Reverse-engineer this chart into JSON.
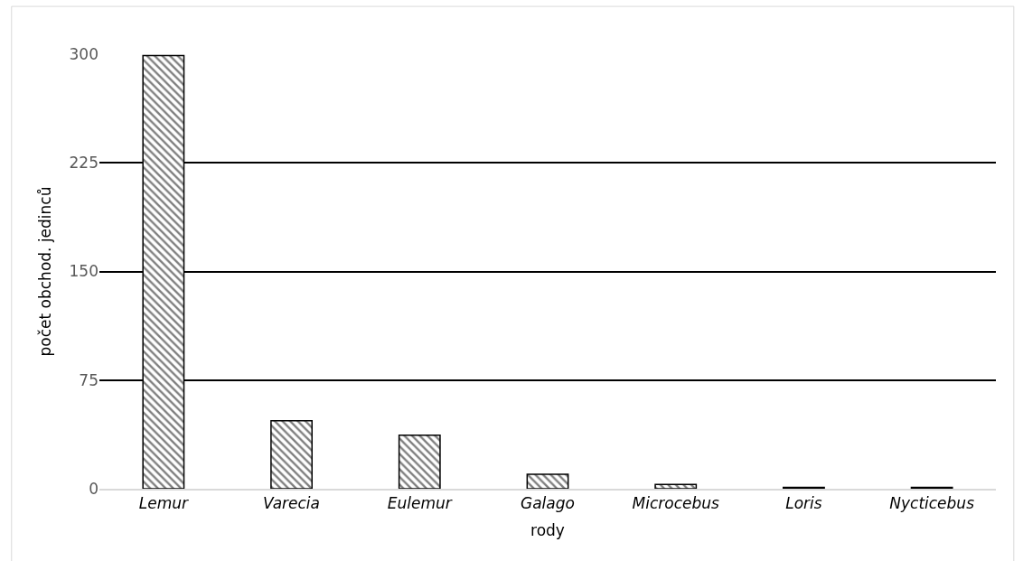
{
  "chart_data": {
    "type": "bar",
    "xlabel": "rody",
    "ylabel": "počet obchod. jedinců",
    "categories": [
      "Lemur",
      "Varecia",
      "Eulemur",
      "Galago",
      "Microcebus",
      "Loris",
      "Nycticebus"
    ],
    "values": [
      299,
      47,
      37,
      10,
      3,
      1,
      1
    ],
    "color": "#000000",
    "ylim": [
      0,
      300
    ],
    "yticks": [
      0,
      75,
      150,
      225,
      300
    ],
    "grid": "y",
    "legend": false
  }
}
